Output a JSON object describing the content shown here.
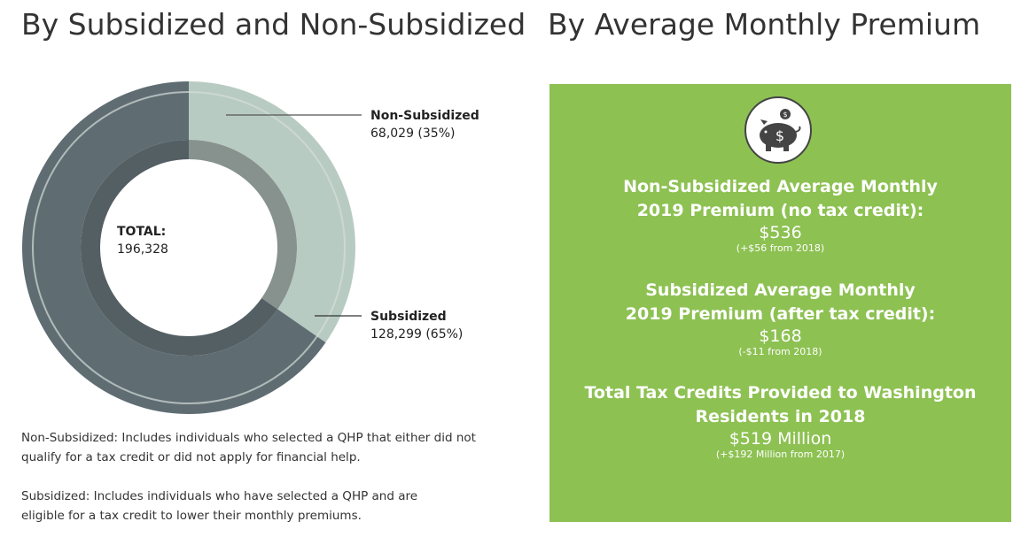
{
  "left": {
    "title": "By Subsidized and Non-Subsidized",
    "notes": [
      "Non-Subsidized: Includes individuals who selected a QHP that either did not qualify for a tax credit or did not apply for financial help.",
      "Subsidized: Includes individuals who have selected a QHP and are eligible for a tax credit to lower their monthly premiums."
    ]
  },
  "chart_data": {
    "type": "pie",
    "center_label": "TOTAL:",
    "total": "196,328",
    "slices": [
      {
        "name": "Non-Subsidized",
        "value": 68029,
        "label": "68,029 (35%)",
        "percent": 35,
        "color": "#b8cbc2"
      },
      {
        "name": "Subsidized",
        "value": 128299,
        "label": "128,299 (65%)",
        "percent": 65,
        "color": "#5f6d73"
      }
    ]
  },
  "right": {
    "title": "By Average Monthly Premium",
    "background": "#8dc152",
    "icon": "piggy-bank-dollar-icon",
    "blocks": [
      {
        "title1": "Non-Subsidized Average Monthly",
        "title2": "2019 Premium (no tax credit):",
        "value": "$536",
        "change": "(+$56 from 2018)"
      },
      {
        "title1": "Subsidized Average Monthly",
        "title2": "2019 Premium (after tax credit):",
        "value": "$168",
        "change": "(-$11 from 2018)"
      },
      {
        "title1": "Total Tax Credits Provided to Washington",
        "title2": "Residents in 2018",
        "value": "$519 Million",
        "change": "(+$192 Million from 2017)"
      }
    ]
  }
}
